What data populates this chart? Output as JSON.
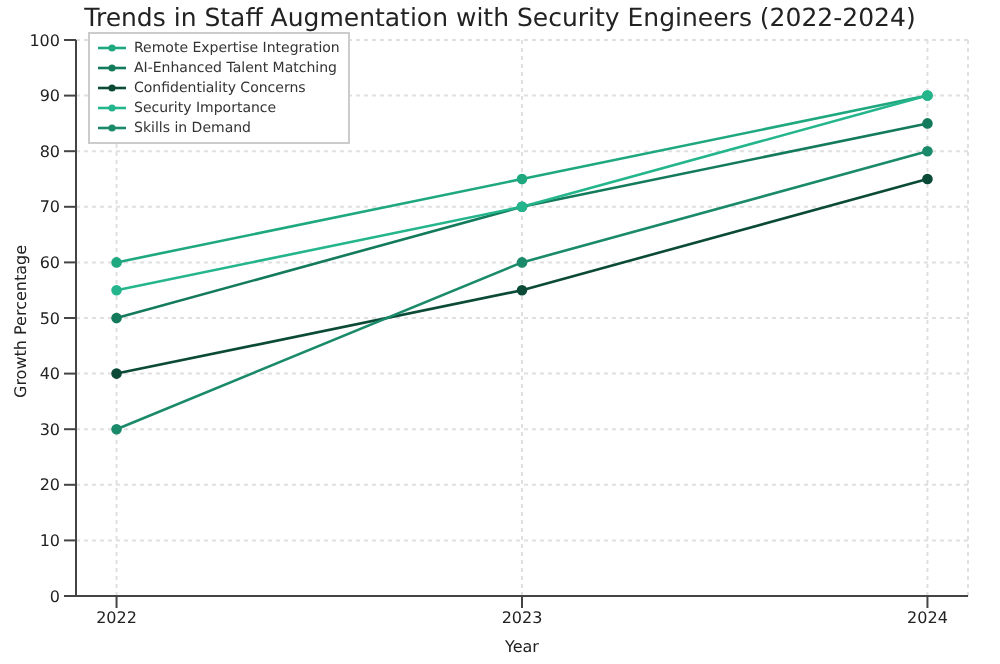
{
  "chart_data": {
    "type": "line",
    "title": "Trends in Staff Augmentation with Security Engineers (2022-2024)",
    "xlabel": "Year",
    "ylabel": "Growth Percentage",
    "categories": [
      "2022",
      "2023",
      "2024"
    ],
    "series": [
      {
        "name": "Remote Expertise Integration",
        "color": "#1fa880",
        "values": [
          60,
          75,
          90
        ]
      },
      {
        "name": "AI-Enhanced Talent Matching",
        "color": "#137a5b",
        "values": [
          50,
          70,
          85
        ]
      },
      {
        "name": "Confidentiality Concerns",
        "color": "#0b4a37",
        "values": [
          40,
          55,
          75
        ]
      },
      {
        "name": "Security Importance",
        "color": "#25b58c",
        "values": [
          55,
          70,
          90
        ]
      },
      {
        "name": "Skills in Demand",
        "color": "#1a8a6a",
        "values": [
          30,
          60,
          80
        ]
      }
    ],
    "ylim": [
      0,
      100
    ],
    "yticks": [
      0,
      10,
      20,
      30,
      40,
      50,
      60,
      70,
      80,
      90,
      100
    ],
    "grid": true,
    "legend": "top left",
    "marker": "circle",
    "line_style": "solid"
  }
}
